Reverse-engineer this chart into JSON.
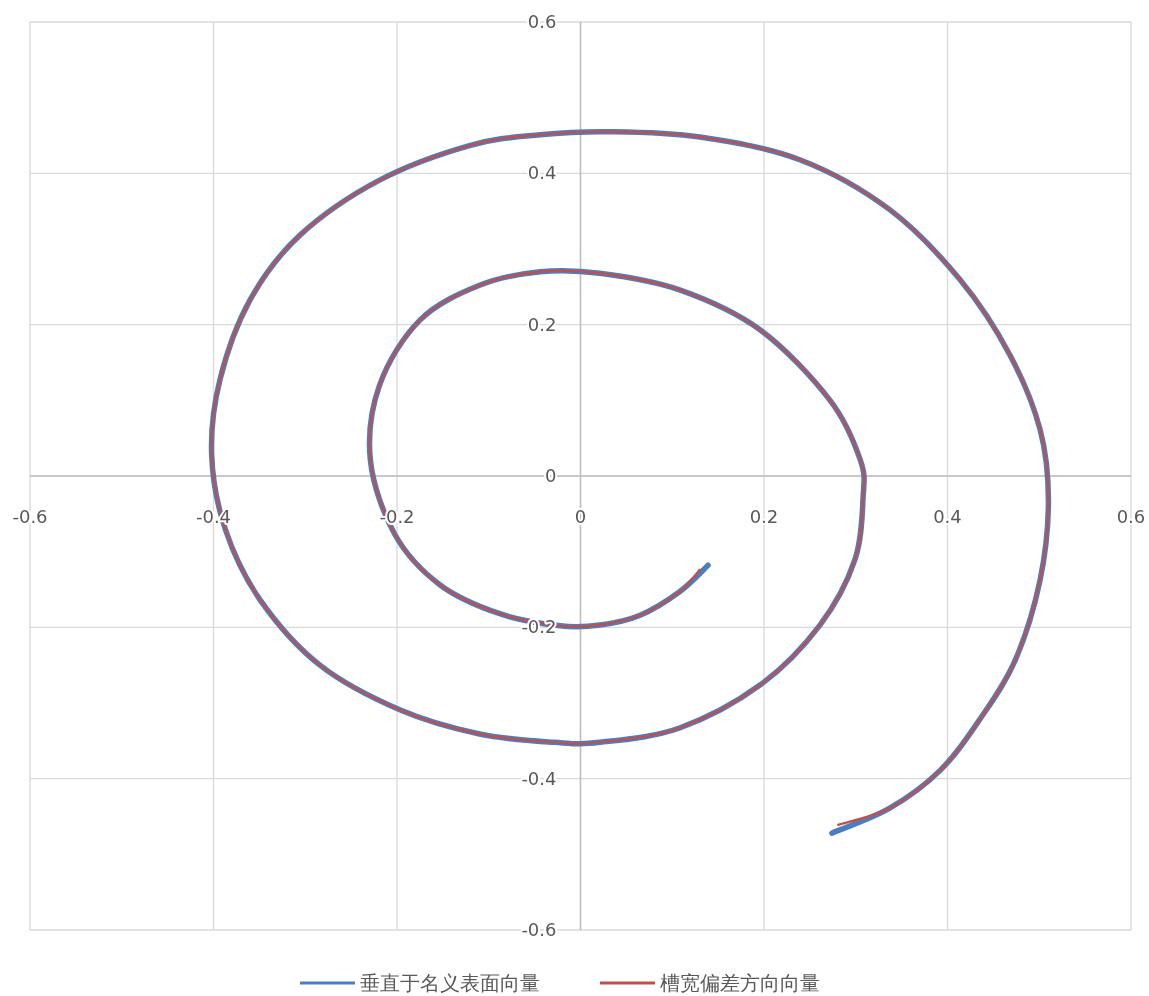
{
  "chart_data": {
    "type": "line",
    "xlim": [
      -0.6,
      0.6
    ],
    "ylim": [
      -0.6,
      0.6
    ],
    "xticks": [
      -0.6,
      -0.4,
      -0.2,
      0,
      0.2,
      0.4,
      0.6
    ],
    "yticks": [
      -0.6,
      -0.4,
      -0.2,
      0,
      0.2,
      0.4,
      0.6
    ],
    "grid": true,
    "legend": "bottom",
    "marker": "none",
    "line_style": "solid",
    "series": [
      {
        "name": "垂直于名义表面向量",
        "color": "#4a7ebf",
        "x": [
          0.139,
          0.108,
          0.065,
          0.021,
          -0.022,
          -0.088,
          -0.153,
          -0.202,
          -0.229,
          -0.219,
          -0.175,
          -0.11,
          -0.044,
          0.021,
          0.108,
          0.196,
          0.272,
          0.305,
          0.308,
          0.299,
          0.261,
          0.196,
          0.108,
          0.021,
          -0.028,
          -0.11,
          -0.197,
          -0.284,
          -0.349,
          -0.387,
          -0.402,
          -0.393,
          -0.36,
          -0.306,
          -0.219,
          -0.12,
          -0.044,
          0.032,
          0.13,
          0.239,
          0.337,
          0.414,
          0.468,
          0.501,
          0.51,
          0.501,
          0.474,
          0.435,
          0.392,
          0.337,
          0.274
        ],
        "values": [
          -0.118,
          -0.153,
          -0.184,
          -0.197,
          -0.198,
          -0.182,
          -0.144,
          -0.078,
          0.021,
          0.12,
          0.206,
          0.252,
          0.27,
          0.268,
          0.246,
          0.193,
          0.1,
          0.021,
          -0.028,
          -0.111,
          -0.197,
          -0.276,
          -0.333,
          -0.352,
          -0.352,
          -0.341,
          -0.309,
          -0.25,
          -0.164,
          -0.071,
          0.028,
          0.127,
          0.233,
          0.318,
          0.391,
          0.437,
          0.451,
          0.455,
          0.448,
          0.418,
          0.352,
          0.259,
          0.16,
          0.061,
          -0.032,
          -0.137,
          -0.243,
          -0.322,
          -0.389,
          -0.439,
          -0.472
        ]
      },
      {
        "name": "槽宽偏差方向向量",
        "color": "#c0504d",
        "x": [
          0.13,
          0.108,
          0.065,
          0.021,
          -0.022,
          -0.088,
          -0.153,
          -0.202,
          -0.229,
          -0.219,
          -0.175,
          -0.11,
          -0.044,
          0.021,
          0.108,
          0.196,
          0.272,
          0.305,
          0.308,
          0.299,
          0.261,
          0.196,
          0.108,
          0.021,
          -0.028,
          -0.11,
          -0.197,
          -0.284,
          -0.349,
          -0.387,
          -0.402,
          -0.393,
          -0.36,
          -0.306,
          -0.219,
          -0.12,
          -0.044,
          0.032,
          0.13,
          0.239,
          0.337,
          0.414,
          0.468,
          0.501,
          0.51,
          0.501,
          0.474,
          0.435,
          0.392,
          0.337,
          0.281
        ],
        "values": [
          -0.124,
          -0.153,
          -0.184,
          -0.197,
          -0.198,
          -0.182,
          -0.144,
          -0.078,
          0.021,
          0.12,
          0.206,
          0.252,
          0.27,
          0.268,
          0.246,
          0.193,
          0.1,
          0.021,
          -0.028,
          -0.111,
          -0.197,
          -0.276,
          -0.333,
          -0.352,
          -0.352,
          -0.341,
          -0.309,
          -0.25,
          -0.164,
          -0.071,
          0.028,
          0.127,
          0.233,
          0.318,
          0.391,
          0.437,
          0.451,
          0.455,
          0.448,
          0.418,
          0.352,
          0.259,
          0.16,
          0.061,
          -0.032,
          -0.137,
          -0.243,
          -0.322,
          -0.389,
          -0.439,
          -0.461
        ]
      }
    ]
  }
}
